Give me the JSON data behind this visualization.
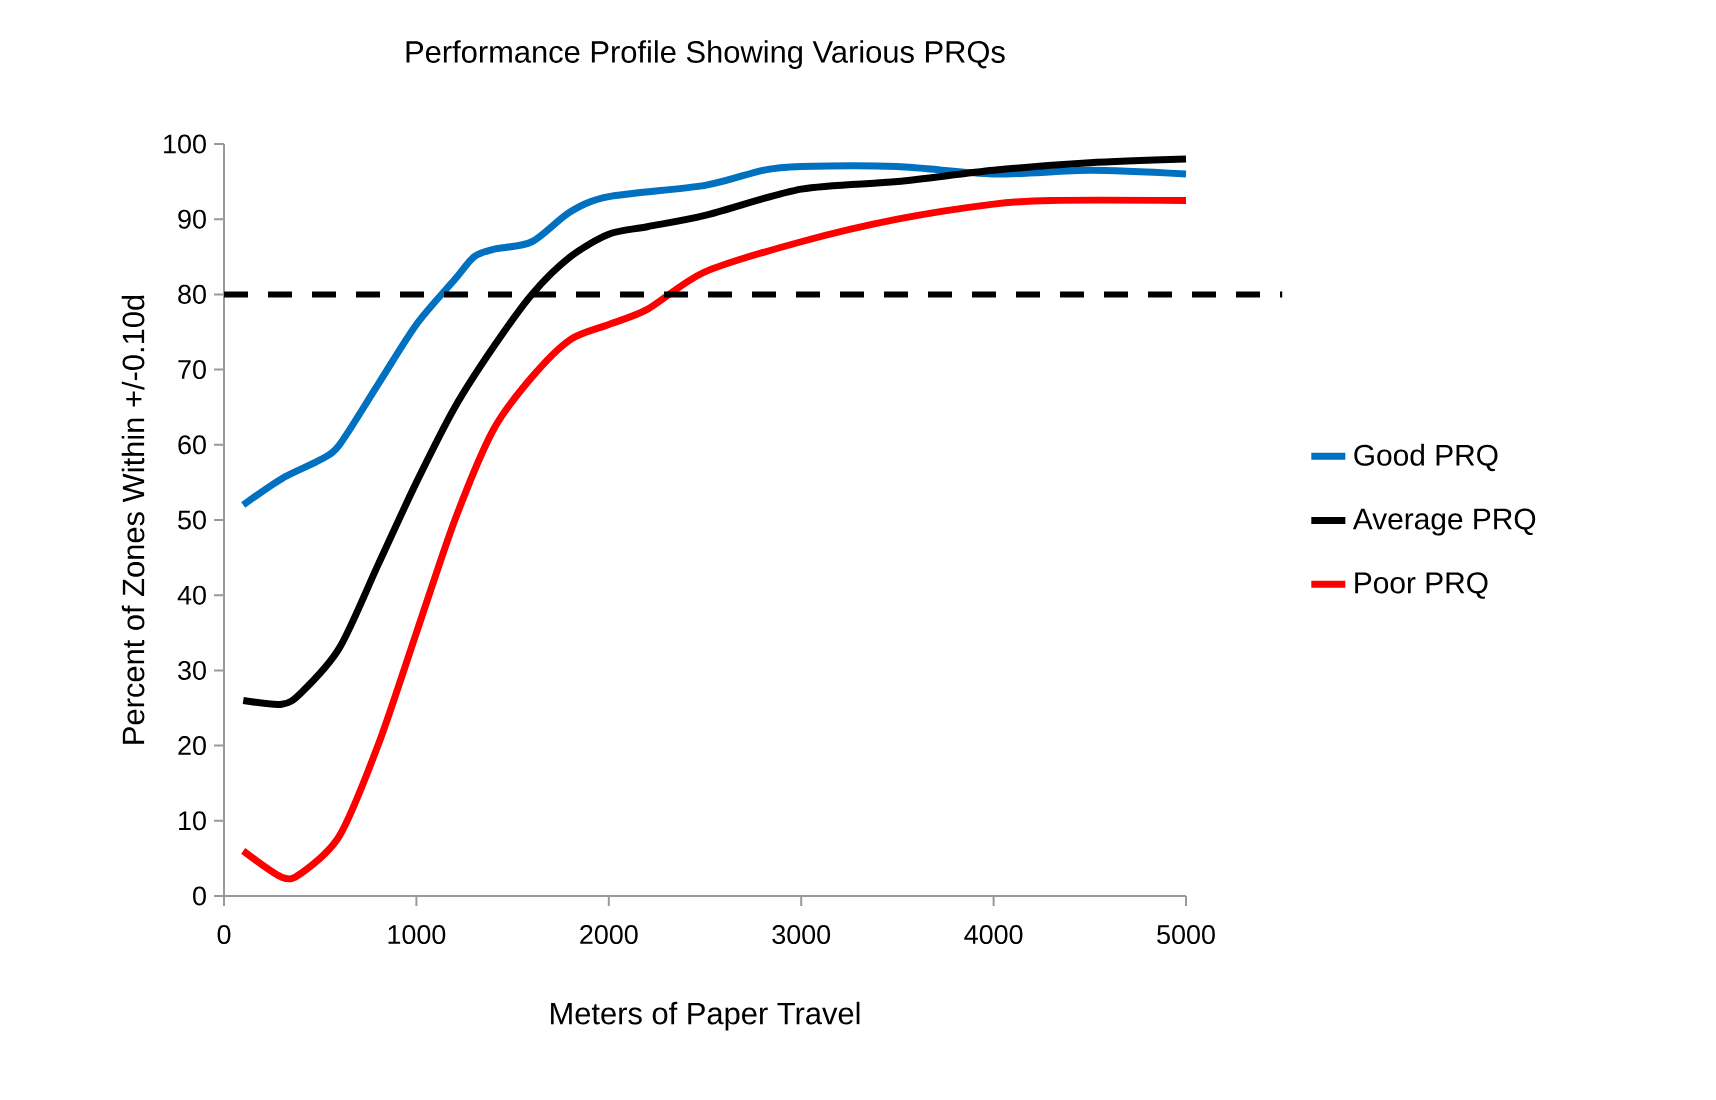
{
  "chart_data": {
    "type": "line",
    "title": "Performance Profile Showing Various PRQs",
    "xlabel": "Meters of Paper Travel",
    "ylabel": "Percent of Zones Within +/-0.10d",
    "series": [
      {
        "name": "Good PRQ",
        "color": "#0070c0",
        "x": [
          100,
          300,
          500,
          600,
          800,
          1000,
          1200,
          1300,
          1400,
          1600,
          1800,
          2000,
          2500,
          2800,
          3000,
          3500,
          4000,
          4500,
          5000
        ],
        "values": [
          52,
          55.5,
          58,
          60,
          68,
          76,
          82,
          85,
          86,
          87,
          91,
          93,
          94.5,
          96.5,
          97,
          97,
          96,
          96.5,
          96
        ]
      },
      {
        "name": "Average PRQ",
        "color": "#000000",
        "x": [
          100,
          300,
          400,
          600,
          800,
          1000,
          1200,
          1400,
          1600,
          1800,
          2000,
          2200,
          2500,
          3000,
          3500,
          4000,
          4500,
          5000
        ],
        "values": [
          26,
          25.5,
          27,
          33,
          44,
          55,
          65,
          73,
          80,
          85,
          88,
          89,
          90.5,
          94,
          95,
          96.5,
          97.5,
          98
        ]
      },
      {
        "name": "Poor PRQ",
        "color": "#ff0000",
        "x": [
          100,
          300,
          400,
          600,
          800,
          1000,
          1200,
          1400,
          1600,
          1800,
          2000,
          2200,
          2500,
          3000,
          3500,
          4000,
          4300,
          5000
        ],
        "values": [
          6,
          2.5,
          3,
          8,
          20,
          35,
          50,
          62,
          69,
          74,
          76,
          78,
          83,
          87,
          90,
          92,
          92.5,
          92.5
        ]
      }
    ],
    "xlim": [
      0,
      5000
    ],
    "ylim": [
      0,
      100
    ],
    "xticks": [
      0,
      1000,
      2000,
      3000,
      4000,
      5000
    ],
    "yticks": [
      0,
      10,
      20,
      30,
      40,
      50,
      60,
      70,
      80,
      90,
      100
    ],
    "ref_lines": [
      {
        "axis": "y",
        "value": 80,
        "color": "#000000",
        "line_style": "dashed"
      }
    ],
    "grid": false,
    "legend": "right",
    "marker": "none",
    "line_style": "solid"
  }
}
